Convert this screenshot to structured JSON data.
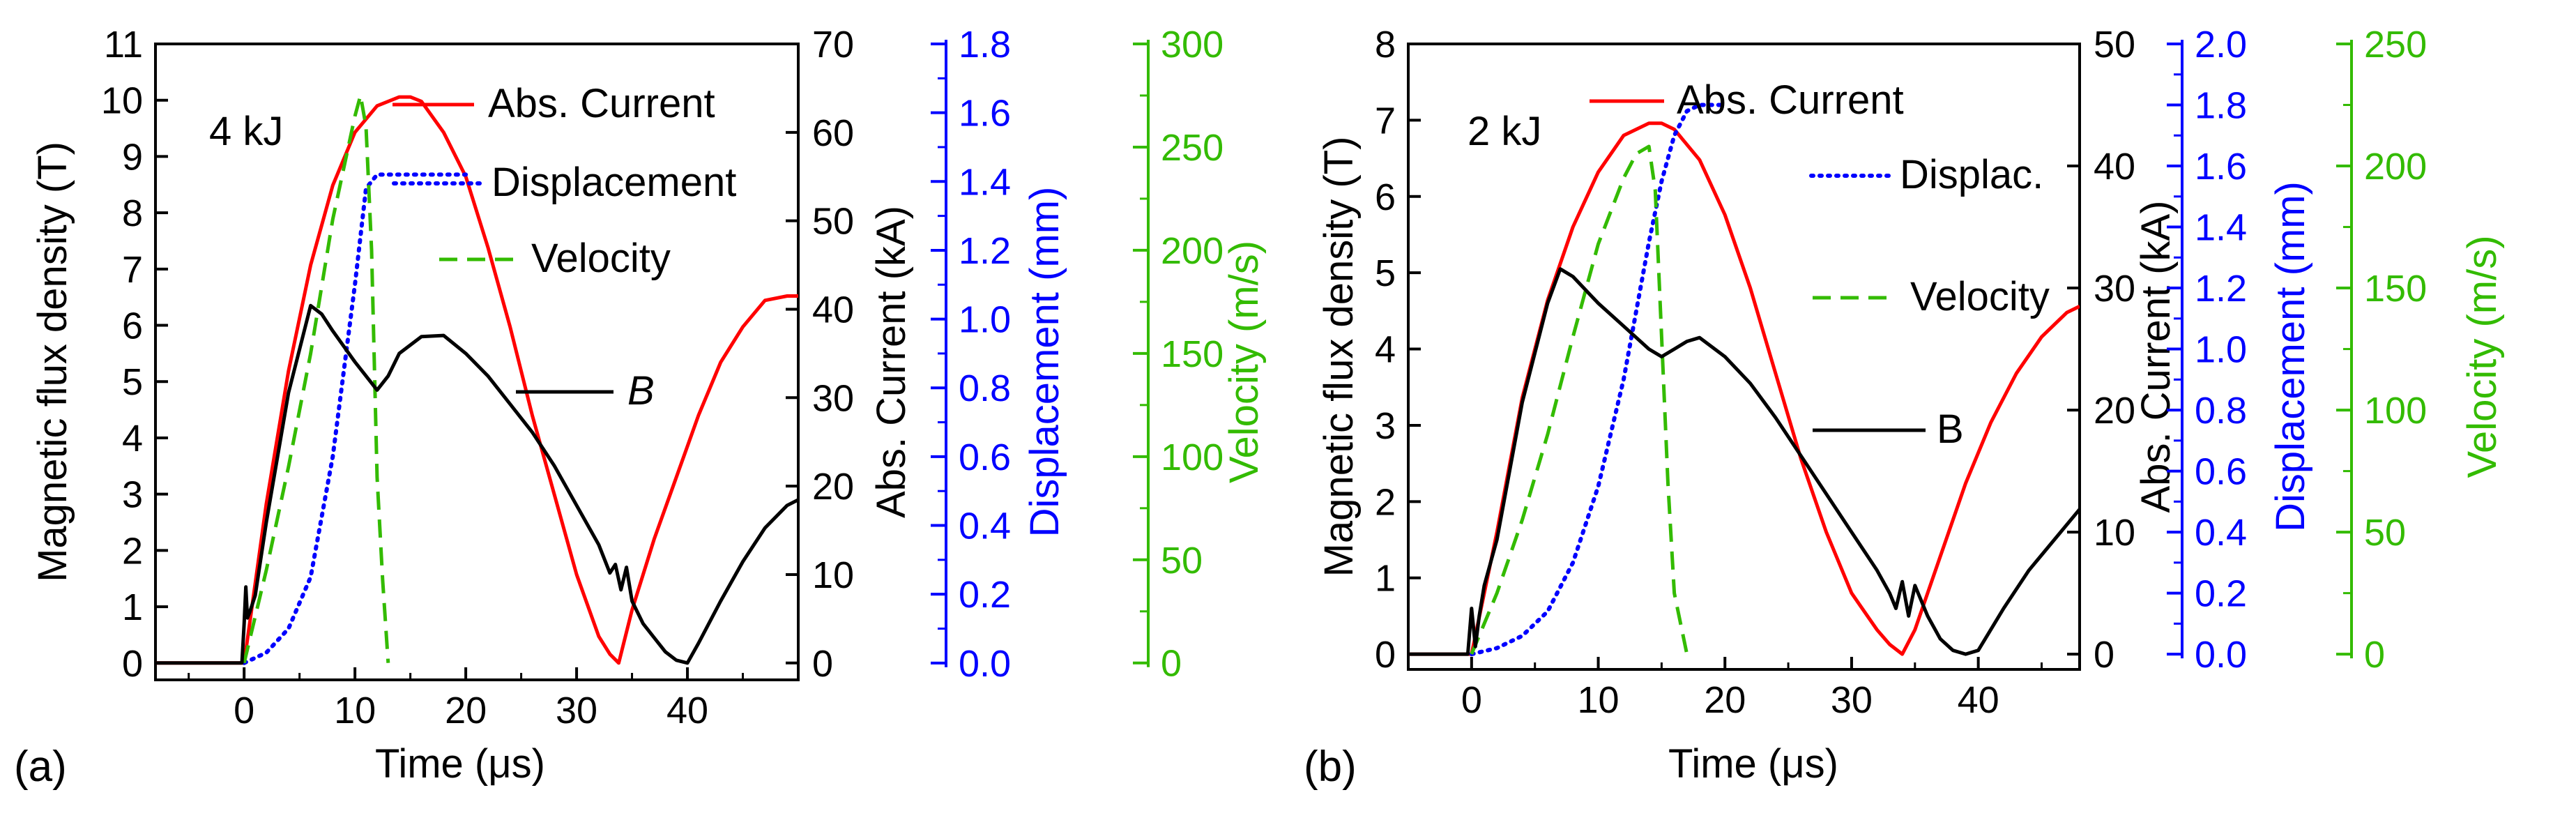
{
  "chart_data": [
    {
      "type": "line",
      "panel_label": "(a)",
      "energy_label": "4 kJ",
      "xlabel": "Time (μs)",
      "xlim": [
        -8,
        50
      ],
      "xticks": [
        0,
        10,
        20,
        30,
        40
      ],
      "axes": [
        {
          "id": "B",
          "label": "Magnetic flux density (T)",
          "color": "#000000",
          "range": [
            -0.3,
            11
          ],
          "ticks": [
            0,
            1,
            2,
            3,
            4,
            5,
            6,
            7,
            8,
            9,
            10,
            11
          ]
        },
        {
          "id": "I",
          "label": "Abs. Current (kA)",
          "color": "#000000",
          "range": [
            -1.909,
            70
          ],
          "ticks": [
            0,
            10,
            20,
            30,
            40,
            50,
            60,
            70
          ]
        },
        {
          "id": "D",
          "label": "Displacement (mm)",
          "color": "#0000ff",
          "range": [
            -0.049,
            1.8
          ],
          "ticks": [
            0.0,
            0.2,
            0.4,
            0.6,
            0.8,
            1.0,
            1.2,
            1.4,
            1.6,
            1.8
          ]
        },
        {
          "id": "V",
          "label": "Velocity (m/s)",
          "color": "#33bb00",
          "range": [
            -8.2,
            300
          ],
          "ticks": [
            0,
            50,
            100,
            150,
            200,
            250,
            300
          ]
        }
      ],
      "series": [
        {
          "name": "Abs. Current",
          "legend": "Abs. Current",
          "axis": "I",
          "color": "#ff0000",
          "dash": "solid",
          "x": [
            -8,
            0,
            2,
            4,
            6,
            8,
            10,
            12,
            14,
            15,
            16,
            18,
            20,
            22,
            24,
            26,
            28,
            30,
            32,
            33,
            33.8,
            35,
            37,
            39,
            41,
            43,
            45,
            47,
            49,
            50
          ],
          "y": [
            0,
            0,
            18,
            33,
            45,
            54,
            60,
            63,
            64,
            64,
            63.5,
            60,
            55,
            47,
            38,
            28,
            19,
            10,
            3,
            1,
            0,
            6,
            14,
            21,
            28,
            34,
            38,
            41,
            41.5,
            41.5
          ]
        },
        {
          "name": "Displacement",
          "legend": "Displacement",
          "axis": "D",
          "color": "#0000ff",
          "dash": "dotted",
          "x": [
            0,
            2,
            4,
            6,
            8,
            9,
            10,
            11,
            12,
            13,
            14,
            15,
            20
          ],
          "y": [
            0,
            0.03,
            0.1,
            0.25,
            0.6,
            0.85,
            1.1,
            1.38,
            1.42,
            1.42,
            1.42,
            1.42,
            1.42
          ]
        },
        {
          "name": "Velocity",
          "legend": "Velocity",
          "axis": "V",
          "color": "#33bb00",
          "dash": "dashed",
          "x": [
            0,
            2,
            4,
            6,
            8,
            10,
            10.5,
            11,
            11.5,
            12,
            12.5,
            13
          ],
          "y": [
            0,
            45,
            95,
            150,
            215,
            265,
            275,
            260,
            200,
            90,
            40,
            0
          ]
        },
        {
          "name": "B",
          "legend": "B",
          "axis": "B",
          "color": "#000000",
          "dash": "solid",
          "x": [
            -8,
            -0.2,
            0,
            0.15,
            0.3,
            0.5,
            1,
            2,
            4,
            6,
            7,
            8,
            10,
            11,
            12,
            13,
            14,
            16,
            18,
            20,
            22,
            24,
            26,
            28,
            30,
            32,
            33,
            33.5,
            34,
            34.5,
            35,
            36,
            37,
            38,
            39,
            40,
            41,
            43,
            45,
            47,
            49,
            50
          ],
          "y": [
            0,
            0,
            0.7,
            1.35,
            0.8,
            0.9,
            1.2,
            2.5,
            4.8,
            6.35,
            6.2,
            5.9,
            5.35,
            5.1,
            4.85,
            5.1,
            5.5,
            5.8,
            5.82,
            5.5,
            5.1,
            4.6,
            4.1,
            3.5,
            2.8,
            2.1,
            1.6,
            1.75,
            1.3,
            1.7,
            1.1,
            0.7,
            0.45,
            0.2,
            0.05,
            0,
            0.35,
            1.1,
            1.8,
            2.4,
            2.8,
            2.9
          ]
        }
      ]
    },
    {
      "type": "line",
      "panel_label": "(b)",
      "energy_label": "2 kJ",
      "xlabel": "Time (μs)",
      "xlim": [
        -5,
        48
      ],
      "xticks": [
        0,
        10,
        20,
        30,
        40
      ],
      "axes": [
        {
          "id": "B",
          "label": "Magnetic flux density (T)",
          "color": "#000000",
          "range": [
            -0.2,
            8
          ],
          "ticks": [
            0,
            1,
            2,
            3,
            4,
            5,
            6,
            7,
            8
          ]
        },
        {
          "id": "I",
          "label": "Abs. Current (kA)",
          "color": "#000000",
          "range": [
            -1.25,
            50
          ],
          "ticks": [
            0,
            10,
            20,
            30,
            40,
            50
          ]
        },
        {
          "id": "D",
          "label": "Displacement (mm)",
          "color": "#0000ff",
          "range": [
            -0.05,
            2.0
          ],
          "ticks": [
            0.0,
            0.2,
            0.4,
            0.6,
            0.8,
            1.0,
            1.2,
            1.4,
            1.6,
            1.8,
            2.0
          ]
        },
        {
          "id": "V",
          "label": "Velocity (m/s)",
          "color": "#33bb00",
          "range": [
            -6.25,
            250
          ],
          "ticks": [
            0,
            50,
            100,
            150,
            200,
            250
          ]
        }
      ],
      "series": [
        {
          "name": "Abs. Current",
          "legend": "Abs. Current",
          "axis": "I",
          "color": "#ff0000",
          "dash": "solid",
          "x": [
            -5,
            0,
            2,
            4,
            6,
            8,
            10,
            12,
            14,
            15,
            16,
            18,
            20,
            22,
            24,
            26,
            28,
            30,
            32,
            33,
            34,
            35,
            37,
            39,
            41,
            43,
            45,
            47,
            48
          ],
          "y": [
            0,
            0,
            10,
            21,
            29,
            35,
            39.5,
            42.5,
            43.5,
            43.5,
            43,
            40.5,
            36,
            30,
            23,
            16,
            10,
            5,
            2,
            0.8,
            0,
            2,
            8,
            14,
            19,
            23,
            26,
            28,
            28.5
          ]
        },
        {
          "name": "Displacement",
          "legend": "Displac.",
          "axis": "D",
          "color": "#0000ff",
          "dash": "dotted",
          "x": [
            0,
            2,
            4,
            6,
            8,
            10,
            12,
            14,
            15,
            16,
            17,
            18,
            19,
            20
          ],
          "y": [
            0,
            0.02,
            0.06,
            0.14,
            0.3,
            0.55,
            0.9,
            1.35,
            1.55,
            1.7,
            1.78,
            1.8,
            1.8,
            1.8
          ]
        },
        {
          "name": "Velocity",
          "legend": "Velocity",
          "axis": "V",
          "color": "#33bb00",
          "dash": "dashed",
          "x": [
            0,
            2,
            4,
            6,
            8,
            10,
            12,
            13,
            14,
            14.5,
            15,
            15.5,
            16,
            17
          ],
          "y": [
            0,
            25,
            55,
            90,
            130,
            168,
            195,
            205,
            208,
            190,
            130,
            70,
            25,
            0
          ]
        },
        {
          "name": "B",
          "legend": "B",
          "axis": "B",
          "color": "#000000",
          "dash": "solid",
          "x": [
            -5,
            -0.3,
            0,
            0.3,
            0.6,
            1,
            2,
            4,
            6,
            7,
            8,
            10,
            12,
            14,
            15,
            16,
            17,
            18,
            20,
            22,
            24,
            26,
            28,
            30,
            32,
            33,
            33.5,
            34,
            34.5,
            35,
            36,
            37,
            38,
            39,
            40,
            42,
            44,
            46,
            48
          ],
          "y": [
            0,
            0,
            0.6,
            0.1,
            0.5,
            0.9,
            1.5,
            3.3,
            4.6,
            5.05,
            4.95,
            4.6,
            4.3,
            4.0,
            3.9,
            4.0,
            4.1,
            4.15,
            3.9,
            3.55,
            3.1,
            2.6,
            2.1,
            1.6,
            1.1,
            0.8,
            0.6,
            0.95,
            0.5,
            0.9,
            0.5,
            0.2,
            0.05,
            0,
            0.05,
            0.6,
            1.1,
            1.5,
            1.9
          ]
        }
      ]
    }
  ]
}
